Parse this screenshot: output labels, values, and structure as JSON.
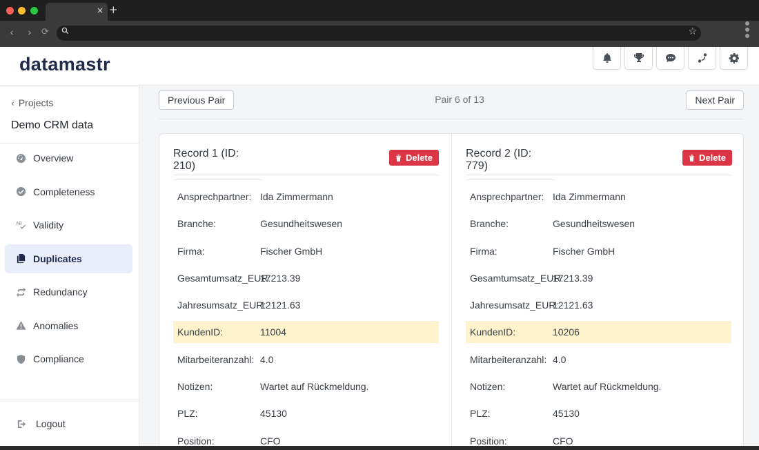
{
  "browser": {
    "tab_close": "×",
    "new_tab": "+",
    "back": "‹",
    "forward": "›",
    "reload": "⟳",
    "search_icon": "search-icon",
    "star": "☆"
  },
  "header": {
    "logo": "datamastr",
    "icons": [
      "bell-icon",
      "trophy-icon",
      "chat-icon",
      "route-icon",
      "gear-icon"
    ]
  },
  "sidebar": {
    "back_label": "Projects",
    "project_name": "Demo CRM data",
    "items": [
      {
        "label": "Overview",
        "icon": "gauge-icon",
        "active": false
      },
      {
        "label": "Completeness",
        "icon": "check-circle-icon",
        "active": false
      },
      {
        "label": "Validity",
        "icon": "ab-check-icon",
        "active": false
      },
      {
        "label": "Duplicates",
        "icon": "copy-icon",
        "active": true
      },
      {
        "label": "Redundancy",
        "icon": "repeat-icon",
        "active": false
      },
      {
        "label": "Anomalies",
        "icon": "warning-icon",
        "active": false
      },
      {
        "label": "Compliance",
        "icon": "shield-icon",
        "active": false
      }
    ],
    "logout_label": "Logout"
  },
  "main": {
    "prev_label": "Previous Pair",
    "next_label": "Next Pair",
    "pair_label": "Pair 6 of 13",
    "records": [
      {
        "title": "Record 1 (ID: 210)",
        "delete_label": "Delete",
        "fields": [
          {
            "key": "Ansprechpartner:",
            "value": "Ida Zimmermann",
            "highlight": false
          },
          {
            "key": "Branche:",
            "value": "Gesundheitswesen",
            "highlight": false
          },
          {
            "key": "Firma:",
            "value": "Fischer GmbH",
            "highlight": false
          },
          {
            "key": "Gesamtumsatz_EUR:",
            "value": "17213.39",
            "highlight": false
          },
          {
            "key": "Jahresumsatz_EUR:",
            "value": "12121.63",
            "highlight": false
          },
          {
            "key": "KundenID:",
            "value": "11004",
            "highlight": true
          },
          {
            "key": "Mitarbeiteranzahl:",
            "value": "4.0",
            "highlight": false
          },
          {
            "key": "Notizen:",
            "value": "Wartet auf Rückmeldung.",
            "highlight": false
          },
          {
            "key": "PLZ:",
            "value": "45130",
            "highlight": false
          },
          {
            "key": "Position:",
            "value": "CFO",
            "highlight": false
          }
        ]
      },
      {
        "title": "Record 2 (ID: 779)",
        "delete_label": "Delete",
        "fields": [
          {
            "key": "Ansprechpartner:",
            "value": "Ida Zimmermann",
            "highlight": false
          },
          {
            "key": "Branche:",
            "value": "Gesundheitswesen",
            "highlight": false
          },
          {
            "key": "Firma:",
            "value": "Fischer GmbH",
            "highlight": false
          },
          {
            "key": "Gesamtumsatz_EUR:",
            "value": "17213.39",
            "highlight": false
          },
          {
            "key": "Jahresumsatz_EUR:",
            "value": "12121.63",
            "highlight": false
          },
          {
            "key": "KundenID:",
            "value": "10206",
            "highlight": true
          },
          {
            "key": "Mitarbeiteranzahl:",
            "value": "4.0",
            "highlight": false
          },
          {
            "key": "Notizen:",
            "value": "Wartet auf Rückmeldung.",
            "highlight": false
          },
          {
            "key": "PLZ:",
            "value": "45130",
            "highlight": false
          },
          {
            "key": "Position:",
            "value": "CFO",
            "highlight": false
          }
        ]
      }
    ]
  },
  "colors": {
    "brand": "#1f2a4d",
    "delete": "#dc3545",
    "highlight": "#fff3cd",
    "active_nav": "#e9eef9"
  }
}
